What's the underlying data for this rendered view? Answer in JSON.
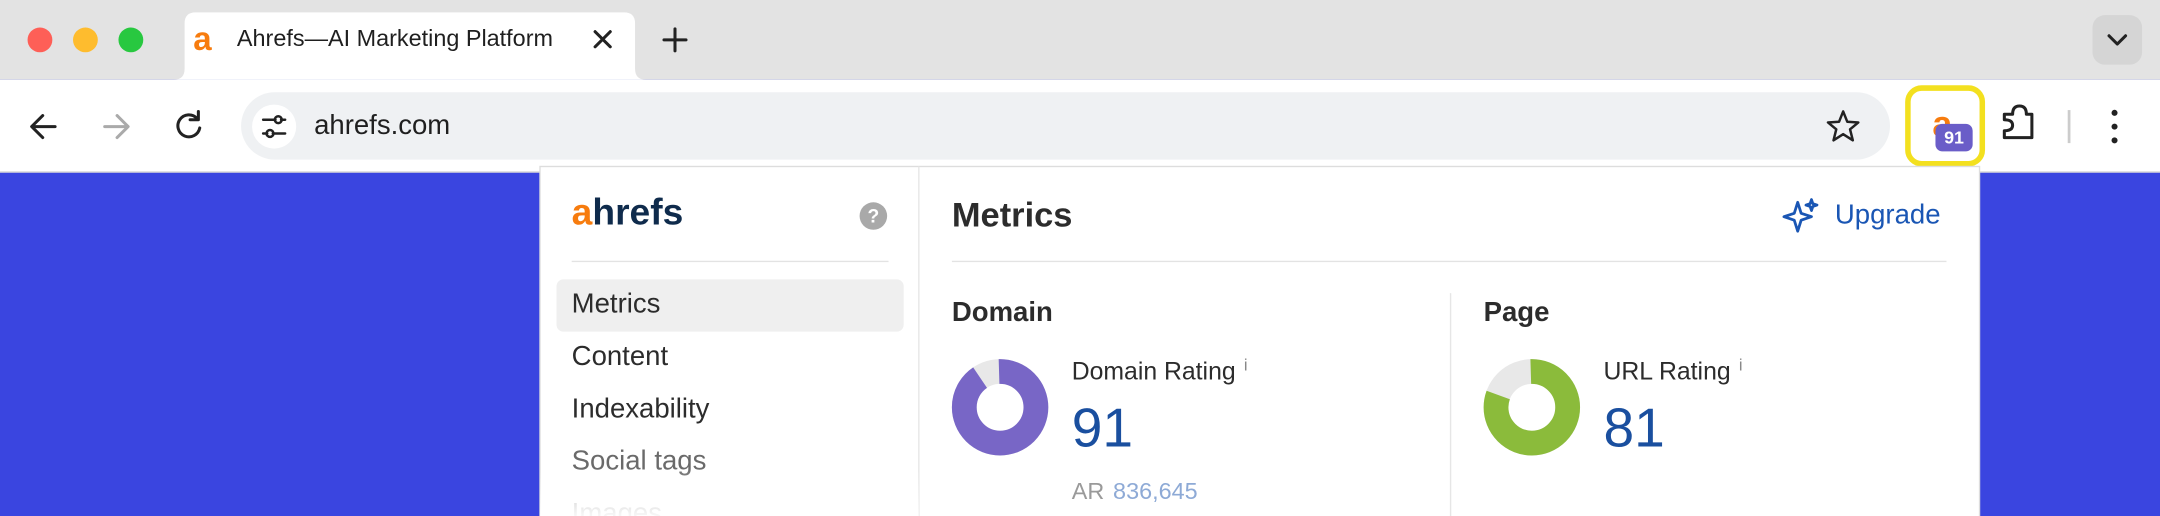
{
  "browser": {
    "tab_title": "Ahrefs—AI Marketing Platform",
    "url": "ahrefs.com",
    "extension_badge": "91"
  },
  "popup": {
    "logo": {
      "accent": "a",
      "rest": "hrefs"
    },
    "help": "?",
    "nav": [
      "Metrics",
      "Content",
      "Indexability",
      "Social tags",
      "Images"
    ],
    "header": {
      "title": "Metrics",
      "upgrade": "Upgrade"
    },
    "domain": {
      "title": "Domain",
      "metric_label": "Domain Rating",
      "info": "i",
      "value": 91,
      "ar_label": "AR",
      "ar_value": "836,645",
      "color": "#7866c6"
    },
    "page": {
      "title": "Page",
      "metric_label": "URL Rating",
      "info": "i",
      "value": 81,
      "color": "#8bbb3b"
    }
  }
}
